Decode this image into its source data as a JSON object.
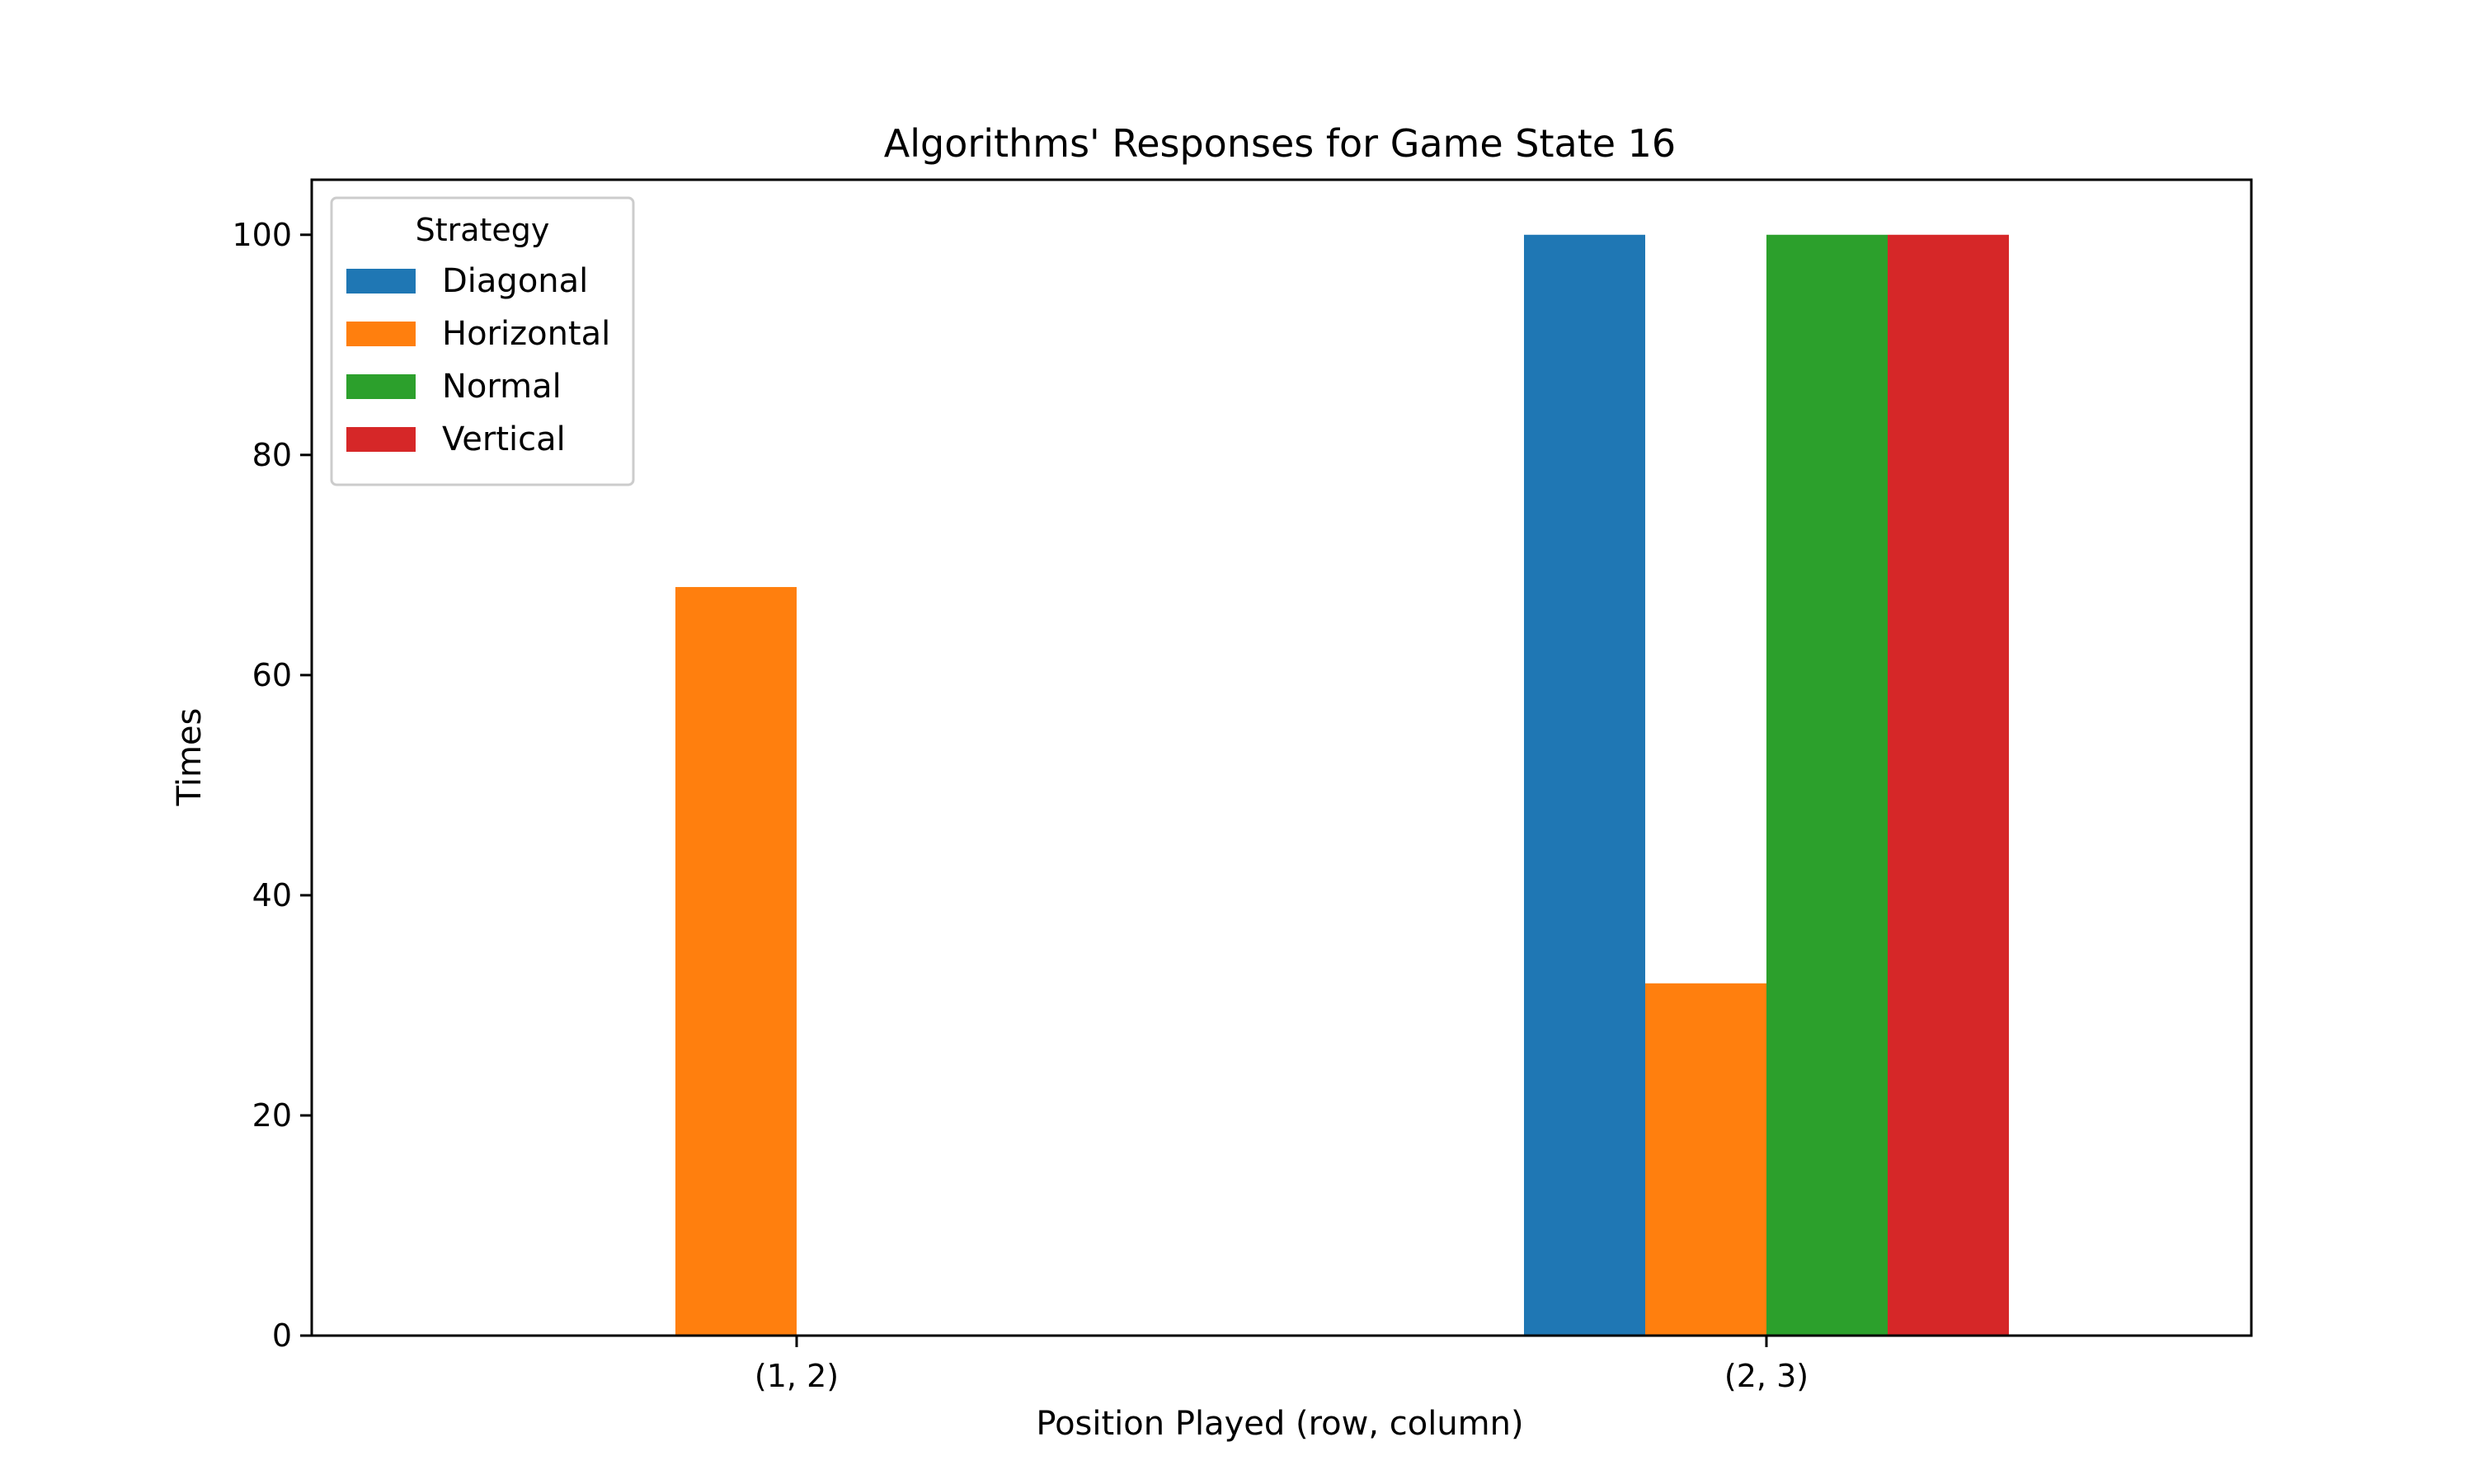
{
  "chart_data": {
    "type": "bar",
    "title": "Algorithms' Responses for Game State 16",
    "xlabel": "Position Played (row, column)",
    "ylabel": "Times",
    "categories": [
      "(1, 2)",
      "(2, 3)"
    ],
    "series": [
      {
        "name": "Diagonal",
        "values": [
          0,
          100
        ],
        "color": "#1f77b4"
      },
      {
        "name": "Horizontal",
        "values": [
          68,
          32
        ],
        "color": "#ff7f0e"
      },
      {
        "name": "Normal",
        "values": [
          0,
          100
        ],
        "color": "#2ca02c"
      },
      {
        "name": "Vertical",
        "values": [
          0,
          100
        ],
        "color": "#d62728"
      }
    ],
    "ylim": [
      0,
      105
    ],
    "yticks": [
      0,
      20,
      40,
      60,
      80,
      100
    ],
    "grid": false,
    "legend": {
      "title": "Strategy",
      "placement": "top-left"
    }
  }
}
